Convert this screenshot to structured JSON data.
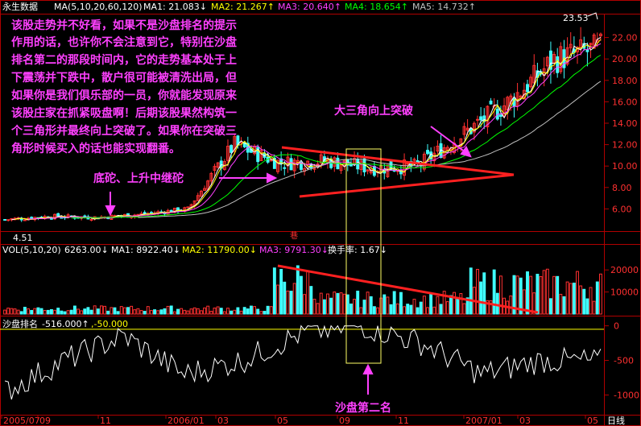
{
  "header": {
    "stock_name": "永生数据",
    "ma_label": "MA(5,10,20,60,120)",
    "ma1": "MA1: 21.083↓",
    "ma2": "MA2: 21.267↑",
    "ma3": "MA3: 20.640↑",
    "ma4": "MA4: 18.654↑",
    "ma5": "MA5: 14.732↑"
  },
  "volume_header": {
    "label": "VOL(5,10,20)",
    "value": "6263.00↓",
    "ma1": "MA1: 8922.40↓",
    "ma2": "MA2: 11790.00↓",
    "ma3": "MA3: 9791.30↓",
    "turnover": "换手率: 1.67↓"
  },
  "rank_header": {
    "label": "沙盘排名",
    "v1": "-516.000↑",
    "v2": ",-50.000"
  },
  "annotations": {
    "main_text": [
      "该股走势并不好看，如果不是沙盘排名的提示",
      "作用的话，也许你不会注意到它，特别在沙盘",
      "排名第二的那段时间内，它的走势基本处于上",
      "下震荡并下跌中，散户很可能被清洗出局，但",
      "如果你是我们俱乐部的一员，你就能发现原来",
      "该股庄家在抓紧吸盘啊！后期该股果然构筑一",
      "个三角形并最终向上突破了。如果你在突破三",
      "角形时候买入的话也能实现翻番。"
    ],
    "breakout": "大三角向上突破",
    "base": "底砣、上升中继砣",
    "rank_second": "沙盘第二名",
    "high_label": "23.53",
    "low_label": "4.51",
    "flag": "巷"
  },
  "period_label": "日线",
  "colors": {
    "background": "#000000",
    "frame": "#b00000",
    "annotation": "#ff40ff",
    "trend": "#ff2020",
    "highlight_box": "#ffff66",
    "up": "#ff3030",
    "down": "#40ffff",
    "ma1": "#ffffff",
    "ma2": "#ffff00",
    "ma3": "#ff40ff",
    "ma4": "#00ff00",
    "ma5": "#c0c0c0"
  },
  "chart_data": [
    {
      "type": "candlestick",
      "title": "永生数据",
      "y_ticks": [
        "22.00",
        "20.00",
        "18.00",
        "16.00",
        "14.00",
        "12.00",
        "10.00",
        "8.00",
        "6.00"
      ],
      "ylim": [
        4,
        24
      ],
      "labeled_high": 23.53,
      "labeled_low": 4.51,
      "approx_close_path": [
        {
          "x": "2005/07",
          "close": 5.0
        },
        {
          "x": "2005/11",
          "close": 5.3
        },
        {
          "x": "2006/01",
          "close": 5.2
        },
        {
          "x": "2006/03",
          "close": 5.5
        },
        {
          "x": "2006/05 start",
          "close": 6.0
        },
        {
          "x": "2006/05 peak",
          "close": 12.0
        },
        {
          "x": "2006/07",
          "close": 10.3
        },
        {
          "x": "2006/09",
          "close": 10.5
        },
        {
          "x": "2006/11",
          "close": 9.8
        },
        {
          "x": "2007/01",
          "close": 10.0
        },
        {
          "x": "2007/02",
          "close": 13.0
        },
        {
          "x": "2007/03",
          "close": 16.0
        },
        {
          "x": "2007/04",
          "close": 20.0
        },
        {
          "x": "2007/05",
          "close": 21.0
        }
      ]
    },
    {
      "type": "bar",
      "title": "VOL(5,10,20)",
      "y_ticks": [
        "20000",
        "10000"
      ],
      "ylim": [
        0,
        27000
      ]
    },
    {
      "type": "line",
      "title": "沙盘排名",
      "y_ticks": [
        "0",
        "-500",
        "-1000"
      ],
      "ylim": [
        -1250,
        100
      ],
      "approx_path": [
        {
          "x": "2005/07",
          "y": -950
        },
        {
          "x": "2005/09",
          "y": -500
        },
        {
          "x": "2005/11",
          "y": -150
        },
        {
          "x": "2006/01",
          "y": -700
        },
        {
          "x": "2006/03",
          "y": -500
        },
        {
          "x": "2006/05",
          "y": -100
        },
        {
          "x": "2006/09",
          "y": 0
        },
        {
          "x": "2006/11",
          "y": -250
        },
        {
          "x": "2007/01",
          "y": -700
        },
        {
          "x": "2007/03",
          "y": -500
        },
        {
          "x": "2007/05",
          "y": -516
        }
      ]
    }
  ],
  "x_axis_labels": [
    "2005/07",
    "09",
    "11",
    "2006/01",
    "03",
    "05",
    "09",
    "11",
    "2007/01",
    "03",
    "05"
  ]
}
